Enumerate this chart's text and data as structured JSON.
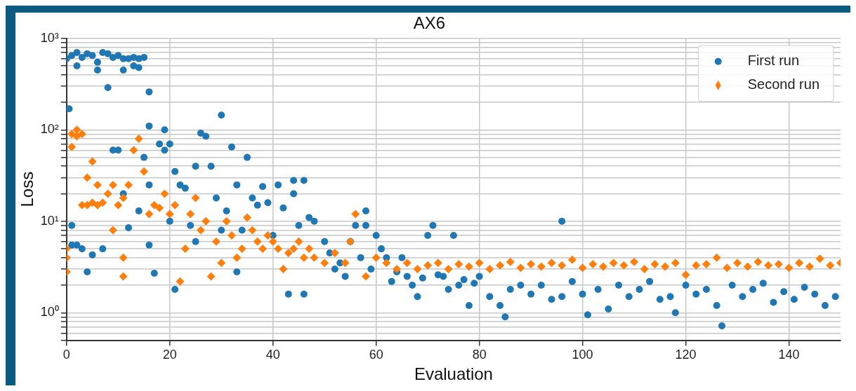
{
  "chart_data": {
    "type": "scatter",
    "title": "AX6",
    "xlabel": "Evaluation",
    "ylabel": "Loss",
    "log": "y",
    "grid": true,
    "legend": "top right",
    "xlim": [
      0,
      150
    ],
    "xticks": [
      0,
      20,
      40,
      60,
      80,
      100,
      120,
      140
    ],
    "ylim": [
      0.5,
      1000
    ],
    "yticks": [
      {
        "value": 0.5,
        "label": null
      },
      {
        "value": 0.6,
        "label": null
      },
      {
        "value": 0.7,
        "label": null
      },
      {
        "value": 0.8,
        "label": null
      },
      {
        "value": 0.9,
        "label": null
      },
      {
        "value": 1,
        "label": "10⁰"
      },
      {
        "value": 2,
        "label": null
      },
      {
        "value": 3,
        "label": null
      },
      {
        "value": 4,
        "label": null
      },
      {
        "value": 5,
        "label": null
      },
      {
        "value": 6,
        "label": null
      },
      {
        "value": 7,
        "label": null
      },
      {
        "value": 8,
        "label": null
      },
      {
        "value": 9,
        "label": null
      },
      {
        "value": 10,
        "label": "10¹"
      },
      {
        "value": 20,
        "label": null
      },
      {
        "value": 30,
        "label": null
      },
      {
        "value": 40,
        "label": null
      },
      {
        "value": 50,
        "label": null
      },
      {
        "value": 60,
        "label": null
      },
      {
        "value": 70,
        "label": null
      },
      {
        "value": 80,
        "label": null
      },
      {
        "value": 90,
        "label": null
      },
      {
        "value": 100,
        "label": "10²"
      },
      {
        "value": 200,
        "label": null
      },
      {
        "value": 300,
        "label": null
      },
      {
        "value": 400,
        "label": null
      },
      {
        "value": 500,
        "label": null
      },
      {
        "value": 600,
        "label": null
      },
      {
        "value": 700,
        "label": null
      },
      {
        "value": 800,
        "label": null
      },
      {
        "value": 900,
        "label": null
      },
      {
        "value": 1000,
        "label": "10³"
      }
    ],
    "series": [
      {
        "name": "First run",
        "color": "#1f77b4",
        "marker": "circle",
        "x": [
          0,
          1,
          2,
          3,
          4,
          5,
          6,
          7,
          8,
          9,
          10,
          11,
          12,
          13,
          14,
          15,
          2,
          6,
          11,
          13,
          14,
          0.5,
          1,
          1,
          2,
          3,
          4,
          5,
          7,
          8,
          9,
          10,
          11,
          12,
          14,
          15,
          16,
          16,
          16,
          17,
          16,
          19,
          18,
          19,
          20,
          20,
          21,
          21,
          22,
          23,
          24,
          25,
          25,
          26,
          27,
          28,
          30,
          29,
          30,
          31,
          32,
          33,
          34,
          33,
          35,
          36,
          37,
          38,
          39,
          40,
          41,
          42,
          43,
          44,
          44,
          45,
          46,
          46,
          47,
          48,
          50,
          51,
          52,
          53,
          54,
          55,
          56,
          57,
          58,
          58,
          59,
          60,
          61,
          62,
          63,
          64,
          65,
          66,
          67,
          68,
          69,
          70,
          71,
          72,
          73,
          74,
          75,
          76,
          77,
          78,
          79,
          80,
          82,
          84,
          85,
          86,
          88,
          90,
          92,
          94,
          96,
          96,
          98,
          100,
          101,
          103,
          105,
          107,
          109,
          111,
          113,
          115,
          117,
          118,
          120,
          122,
          124,
          126,
          127,
          129,
          131,
          133,
          135,
          137,
          139,
          141,
          143,
          145,
          147,
          149
        ],
        "values": [
          600,
          650,
          700,
          620,
          680,
          650,
          550,
          700,
          680,
          620,
          650,
          450,
          600,
          620,
          600,
          620,
          500,
          450,
          600,
          500,
          480,
          170,
          9,
          5.5,
          5.5,
          5,
          2.8,
          4.3,
          5,
          290,
          60,
          60,
          20,
          8.5,
          13,
          50,
          260,
          25,
          5.5,
          2.7,
          110,
          100,
          70,
          60,
          70,
          10,
          1.8,
          35,
          25,
          23,
          9,
          40,
          6,
          92,
          85,
          40,
          145,
          18,
          8,
          13,
          65,
          25,
          8,
          2.8,
          50,
          18,
          15,
          24,
          16,
          7,
          25,
          14,
          1.6,
          20,
          28,
          9,
          1.6,
          28,
          11,
          10,
          6,
          4.5,
          3,
          3.5,
          2.5,
          6,
          9,
          4,
          13,
          9,
          3,
          7,
          5,
          4,
          2.2,
          2.8,
          4,
          2.5,
          2,
          1.5,
          2.4,
          7,
          9,
          2.6,
          2.5,
          1.8,
          7,
          2,
          2.3,
          1.2,
          2.1,
          2.5,
          1.5,
          1.2,
          0.9,
          1.8,
          2,
          1.6,
          2,
          1.4,
          10,
          1.5,
          2.2,
          1.6,
          0.95,
          1.8,
          1.1,
          2,
          1.5,
          1.8,
          2.2,
          1.4,
          1.5,
          1,
          2,
          1.6,
          1.8,
          1.2,
          0.72,
          2,
          1.5,
          1.8,
          2.1,
          1.3,
          1.7,
          1.4,
          1.9,
          1.6,
          1.2,
          1.5
        ]
      },
      {
        "name": "Second run",
        "color": "#ff7f0e",
        "marker": "diamond",
        "x": [
          0,
          0,
          0,
          1,
          2,
          1,
          3,
          2,
          3,
          4,
          5,
          6,
          7,
          8,
          9,
          10,
          11,
          12,
          13,
          14,
          15,
          16,
          17,
          18,
          19,
          20,
          21,
          22,
          23,
          24,
          25,
          26,
          27,
          28,
          29,
          30,
          31,
          32,
          33,
          34,
          35,
          36,
          37,
          38,
          39,
          40,
          41,
          42,
          43,
          44,
          45,
          46,
          47,
          48,
          50,
          52,
          54,
          55,
          56,
          58,
          60,
          62,
          64,
          66,
          68,
          70,
          72,
          74,
          76,
          78,
          80,
          82,
          84,
          86,
          88,
          90,
          92,
          94,
          96,
          98,
          100,
          102,
          104,
          106,
          108,
          110,
          112,
          114,
          116,
          118,
          120,
          122,
          124,
          126,
          128,
          130,
          132,
          134,
          136,
          138,
          140,
          142,
          144,
          146,
          148,
          150,
          4,
          5,
          6,
          9,
          11,
          11
        ],
        "values": [
          5,
          4,
          2.8,
          90,
          100,
          65,
          90,
          85,
          15,
          15,
          16,
          15,
          16,
          20,
          25,
          15,
          18,
          25,
          60,
          80,
          35,
          12,
          15,
          14,
          20,
          12,
          15,
          2.2,
          5,
          12,
          18,
          8,
          10,
          2.5,
          6,
          3.5,
          10,
          7,
          4,
          5,
          11,
          8,
          6,
          5,
          7,
          6,
          5,
          3,
          4.5,
          5,
          6,
          4,
          5,
          4,
          3.5,
          4.5,
          3.5,
          6,
          12,
          2.5,
          4,
          3.5,
          3,
          3.5,
          3,
          3.3,
          3.5,
          3,
          3.4,
          3.2,
          3.5,
          3,
          3.3,
          3.6,
          3.1,
          3.4,
          3.2,
          3.5,
          3.3,
          3.8,
          3.1,
          3.4,
          3.2,
          3.5,
          3.3,
          3.6,
          3,
          3.4,
          3.2,
          3.5,
          2.6,
          3.3,
          3.4,
          4,
          3.1,
          3.5,
          3.2,
          3.6,
          3.3,
          3.4,
          3.1,
          3.5,
          3.2,
          3.9,
          3.3,
          3.5,
          30,
          45,
          25,
          8,
          4,
          2.5
        ]
      }
    ]
  }
}
